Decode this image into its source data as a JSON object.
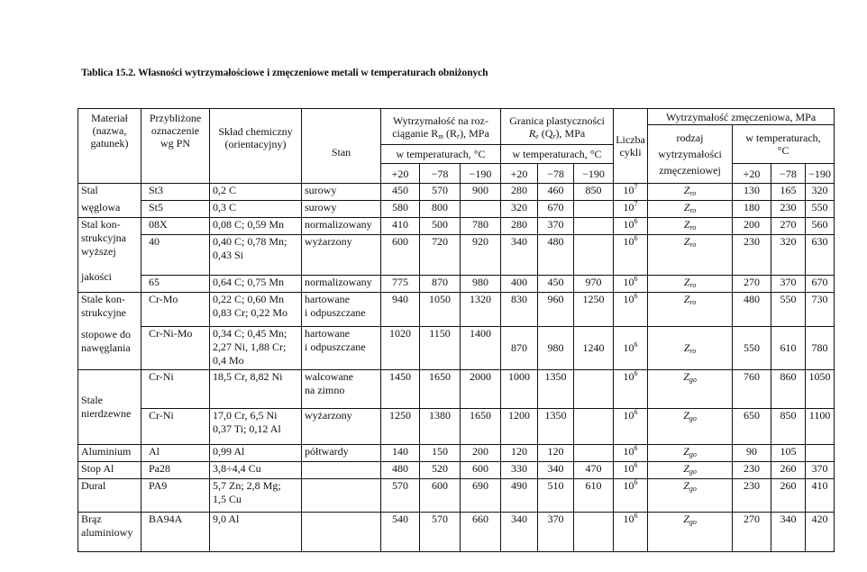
{
  "title": "Tablica 15.2. Własności wytrzymałościowe i zmęczeniowe metali w temperaturach obniżonych",
  "headers": {
    "material": [
      "Materiał",
      "(nazwa,",
      "gatunek)"
    ],
    "pn": [
      "Przybliżone",
      "oznaczenie",
      "wg PN"
    ],
    "composition": [
      "Skład chemiczny",
      "(orientacyjny)"
    ],
    "state": "Stan",
    "rm_title": [
      "Wytrzymałość na roz-",
      "ciąganie R",
      "m",
      " (R",
      "r",
      "), MPa"
    ],
    "re_title": [
      "Granica plastyczności",
      "R",
      "e",
      " (Q",
      "r",
      "), MPa"
    ],
    "temps_label": "w temperaturach, °C",
    "cycles": [
      "Liczba",
      "cykli"
    ],
    "fatigue_title": "Wytrzymałość zmęczeniowa, MPa",
    "fatigue_type": [
      "rodzaj",
      "wytrzymałości",
      "zmęczeniowej"
    ],
    "fatigue_temps": [
      "w temperaturach,",
      "°C"
    ],
    "temps": [
      "+20",
      "−78",
      "−190"
    ]
  },
  "groups": [
    {
      "lines": [
        "Stal",
        "węglowa"
      ],
      "rows": 2
    },
    {
      "lines": [
        "Stal kon-",
        "strukcyjna",
        "wyższej",
        "jakości"
      ],
      "rows": 3
    },
    {
      "lines": [
        "Stale kon-",
        "strukcyjne",
        "stopowe do",
        "nawęglania"
      ],
      "rows": 2
    },
    {
      "lines": [
        "Stale",
        "nierdzewne"
      ],
      "rows": 2
    },
    {
      "lines": [
        "Aluminium"
      ],
      "rows": 1
    },
    {
      "lines": [
        "Stop Al"
      ],
      "rows": 1
    },
    {
      "lines": [
        "Dural"
      ],
      "rows": 1
    },
    {
      "lines": [
        "Brąz",
        "aluminiowy"
      ],
      "rows": 1
    }
  ],
  "rows": [
    {
      "pn": "St3",
      "composition": [
        "0,2 C"
      ],
      "state": [
        "surowy"
      ],
      "rm": [
        "450",
        "570",
        "900"
      ],
      "re": [
        "280",
        "460",
        "850"
      ],
      "cycles_base": "10",
      "cycles_exp": "7",
      "ft_base": "Z",
      "ft_sub": "ro",
      "zm": [
        "130",
        "165",
        "320"
      ]
    },
    {
      "pn": "St5",
      "composition": [
        "0,3 C"
      ],
      "state": [
        "surowy"
      ],
      "rm": [
        "580",
        "800",
        ""
      ],
      "re": [
        "320",
        "670",
        ""
      ],
      "cycles_base": "10",
      "cycles_exp": "7",
      "ft_base": "Z",
      "ft_sub": "ro",
      "zm": [
        "180",
        "230",
        "550"
      ]
    },
    {
      "pn": "08X",
      "composition": [
        "0,08 C; 0,59 Mn"
      ],
      "state": [
        "normalizowany"
      ],
      "rm": [
        "410",
        "500",
        "780"
      ],
      "re": [
        "280",
        "370",
        ""
      ],
      "cycles_base": "10",
      "cycles_exp": "6",
      "ft_base": "Z",
      "ft_sub": "ro",
      "zm": [
        "200",
        "270",
        "560"
      ]
    },
    {
      "pn": "40",
      "composition": [
        "0,40 C; 0,78 Mn;",
        "0,43 Si"
      ],
      "state": [
        "wyżarzony"
      ],
      "rm": [
        "600",
        "720",
        "920"
      ],
      "re": [
        "340",
        "480",
        ""
      ],
      "cycles_base": "10",
      "cycles_exp": "6",
      "ft_base": "Z",
      "ft_sub": "ro",
      "zm": [
        "230",
        "320",
        "630"
      ]
    },
    {
      "pn": "65",
      "composition": [
        "0,64 C; 0,75 Mn"
      ],
      "state": [
        "normalizowany"
      ],
      "rm": [
        "775",
        "870",
        "980"
      ],
      "re": [
        "400",
        "450",
        "970"
      ],
      "cycles_base": "10",
      "cycles_exp": "6",
      "ft_base": "Z",
      "ft_sub": "ro",
      "zm": [
        "270",
        "370",
        "670"
      ]
    },
    {
      "pn": "Cr-Mo",
      "composition": [
        "0,22 C; 0,60 Mn",
        "0,83 Cr; 0,22 Mo"
      ],
      "state": [
        "hartowane",
        "i odpuszczane"
      ],
      "rm": [
        "940",
        "1050",
        "1320"
      ],
      "re": [
        "830",
        "960",
        "1250"
      ],
      "cycles_base": "10",
      "cycles_exp": "6",
      "ft_base": "Z",
      "ft_sub": "ro",
      "zm": [
        "480",
        "550",
        "730"
      ]
    },
    {
      "pn": "Cr-Ni-Mo",
      "composition": [
        "0,34 C; 0,45 Mn;",
        "2,27 Ni, 1,88 Cr;",
        "0,4 Mo"
      ],
      "state": [
        "hartowane",
        "i odpuszczane"
      ],
      "rm": [
        "1020",
        "1150",
        "1400"
      ],
      "re": [
        "870",
        "980",
        "1240"
      ],
      "cycles_base": "10",
      "cycles_exp": "6",
      "ft_base": "Z",
      "ft_sub": "ro",
      "zm": [
        "550",
        "610",
        "780"
      ],
      "mid": true
    },
    {
      "pn": "Cr-Ni",
      "composition": [
        "18,5 Cr, 8,82 Ni"
      ],
      "state": [
        "walcowane",
        "na zimno"
      ],
      "rm": [
        "1450",
        "1650",
        "2000"
      ],
      "re": [
        "1000",
        "1350",
        ""
      ],
      "cycles_base": "10",
      "cycles_exp": "6",
      "ft_base": "Z",
      "ft_sub": "go",
      "zm": [
        "760",
        "860",
        "1050"
      ]
    },
    {
      "pn": "Cr-Ni",
      "composition": [
        "17,0 Cr, 6,5 Ni",
        "0,37 Ti; 0,12 Al"
      ],
      "state": [
        "wyżarzony"
      ],
      "rm": [
        "1250",
        "1380",
        "1650"
      ],
      "re": [
        "1200",
        "1350",
        ""
      ],
      "cycles_base": "10",
      "cycles_exp": "6",
      "ft_base": "Z",
      "ft_sub": "go",
      "zm": [
        "650",
        "850",
        "1100"
      ]
    },
    {
      "pn": "Al",
      "composition": [
        "0,99 Al"
      ],
      "state": [
        "półtwardy"
      ],
      "rm": [
        "140",
        "150",
        "200"
      ],
      "re": [
        "120",
        "120",
        ""
      ],
      "cycles_base": "10",
      "cycles_exp": "6",
      "ft_base": "Z",
      "ft_sub": "go",
      "zm": [
        "90",
        "105",
        ""
      ]
    },
    {
      "pn": "Pa28",
      "composition": [
        "3,8÷4,4 Cu"
      ],
      "state": [
        ""
      ],
      "rm": [
        "480",
        "520",
        "600"
      ],
      "re": [
        "330",
        "340",
        "470"
      ],
      "cycles_base": "10",
      "cycles_exp": "6",
      "ft_base": "Z",
      "ft_sub": "go",
      "zm": [
        "230",
        "260",
        "370"
      ]
    },
    {
      "pn": "PA9",
      "composition": [
        "5,7 Zn; 2,8 Mg;",
        "1,5 Cu"
      ],
      "state": [
        ""
      ],
      "rm": [
        "570",
        "600",
        "690"
      ],
      "re": [
        "490",
        "510",
        "610"
      ],
      "cycles_base": "10",
      "cycles_exp": "6",
      "ft_base": "Z",
      "ft_sub": "go",
      "zm": [
        "230",
        "260",
        "410"
      ]
    },
    {
      "pn": "BA94A",
      "composition": [
        "9,0 Al"
      ],
      "state": [
        ""
      ],
      "rm": [
        "540",
        "570",
        "660"
      ],
      "re": [
        "340",
        "370",
        ""
      ],
      "cycles_base": "10",
      "cycles_exp": "6",
      "ft_base": "Z",
      "ft_sub": "go",
      "zm": [
        "270",
        "340",
        "420"
      ]
    }
  ]
}
